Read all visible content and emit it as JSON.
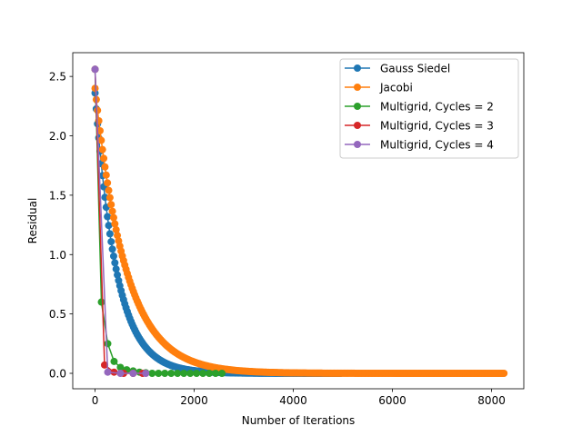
{
  "chart_data": {
    "type": "line",
    "xlabel": "Number of Iterations",
    "ylabel": "Residual",
    "xlim": [
      -450,
      8650
    ],
    "ylim": [
      -0.13,
      2.7
    ],
    "xticks": [
      0,
      2000,
      4000,
      6000,
      8000
    ],
    "yticks": [
      0.0,
      0.5,
      1.0,
      1.5,
      2.0,
      2.5
    ],
    "xtick_labels": [
      "0",
      "2000",
      "4000",
      "6000",
      "8000"
    ],
    "ytick_labels": [
      "0.0",
      "0.5",
      "1.0",
      "1.5",
      "2.0",
      "2.5"
    ],
    "legend_position": "upper right",
    "series": [
      {
        "name": "Gauss Siedel",
        "color": "#1f77b4",
        "marker": "circle",
        "decay": {
          "y0": 2.36,
          "tau": 430,
          "x_end": 4950,
          "step": 25
        },
        "x": [
          0,
          10,
          20,
          30,
          50,
          100,
          200,
          400,
          800,
          1200,
          1600,
          2000,
          2500,
          3000,
          4000,
          4950
        ],
        "values": [
          2.36,
          1.82,
          1.58,
          1.45,
          1.3,
          1.12,
          0.88,
          0.47,
          0.2,
          0.1,
          0.04,
          0.03,
          0.01,
          0.005,
          0.0,
          0.0
        ]
      },
      {
        "name": "Jacobi",
        "color": "#ff7f0e",
        "marker": "circle",
        "decay": {
          "y0": 2.4,
          "tau": 620,
          "x_end": 8250,
          "step": 25
        },
        "x": [
          0,
          10,
          20,
          30,
          50,
          100,
          200,
          400,
          800,
          1200,
          1600,
          2000,
          2500,
          3000,
          4000,
          6000,
          8250
        ],
        "values": [
          2.4,
          1.97,
          1.75,
          1.62,
          1.5,
          1.38,
          1.1,
          0.78,
          0.42,
          0.22,
          0.13,
          0.06,
          0.03,
          0.02,
          0.005,
          0.0,
          0.0
        ]
      },
      {
        "name": "Multigrid, Cycles = 2",
        "color": "#2ca02c",
        "marker": "circle",
        "x": [
          0,
          128,
          256,
          384,
          512,
          640,
          768,
          896,
          1024,
          1152,
          1280,
          1408,
          1536,
          1664,
          1792,
          1920,
          2048,
          2176,
          2304,
          2432,
          2560
        ],
        "values": [
          2.56,
          0.6,
          0.25,
          0.1,
          0.05,
          0.03,
          0.02,
          0.01,
          0.005,
          0.0,
          0.0,
          0.0,
          0.0,
          0.0,
          0.0,
          0.0,
          0.0,
          0.0,
          0.0,
          0.0,
          0.0
        ]
      },
      {
        "name": "Multigrid, Cycles = 3",
        "color": "#d62728",
        "marker": "circle",
        "x": [
          0,
          192,
          384,
          576,
          768,
          960
        ],
        "values": [
          2.56,
          0.07,
          0.01,
          0.0,
          0.0,
          0.0
        ]
      },
      {
        "name": "Multigrid, Cycles = 4",
        "color": "#9467bd",
        "marker": "circle",
        "x": [
          0,
          256,
          512,
          768,
          1024
        ],
        "values": [
          2.56,
          0.01,
          0.0,
          0.0,
          0.0
        ]
      }
    ]
  }
}
